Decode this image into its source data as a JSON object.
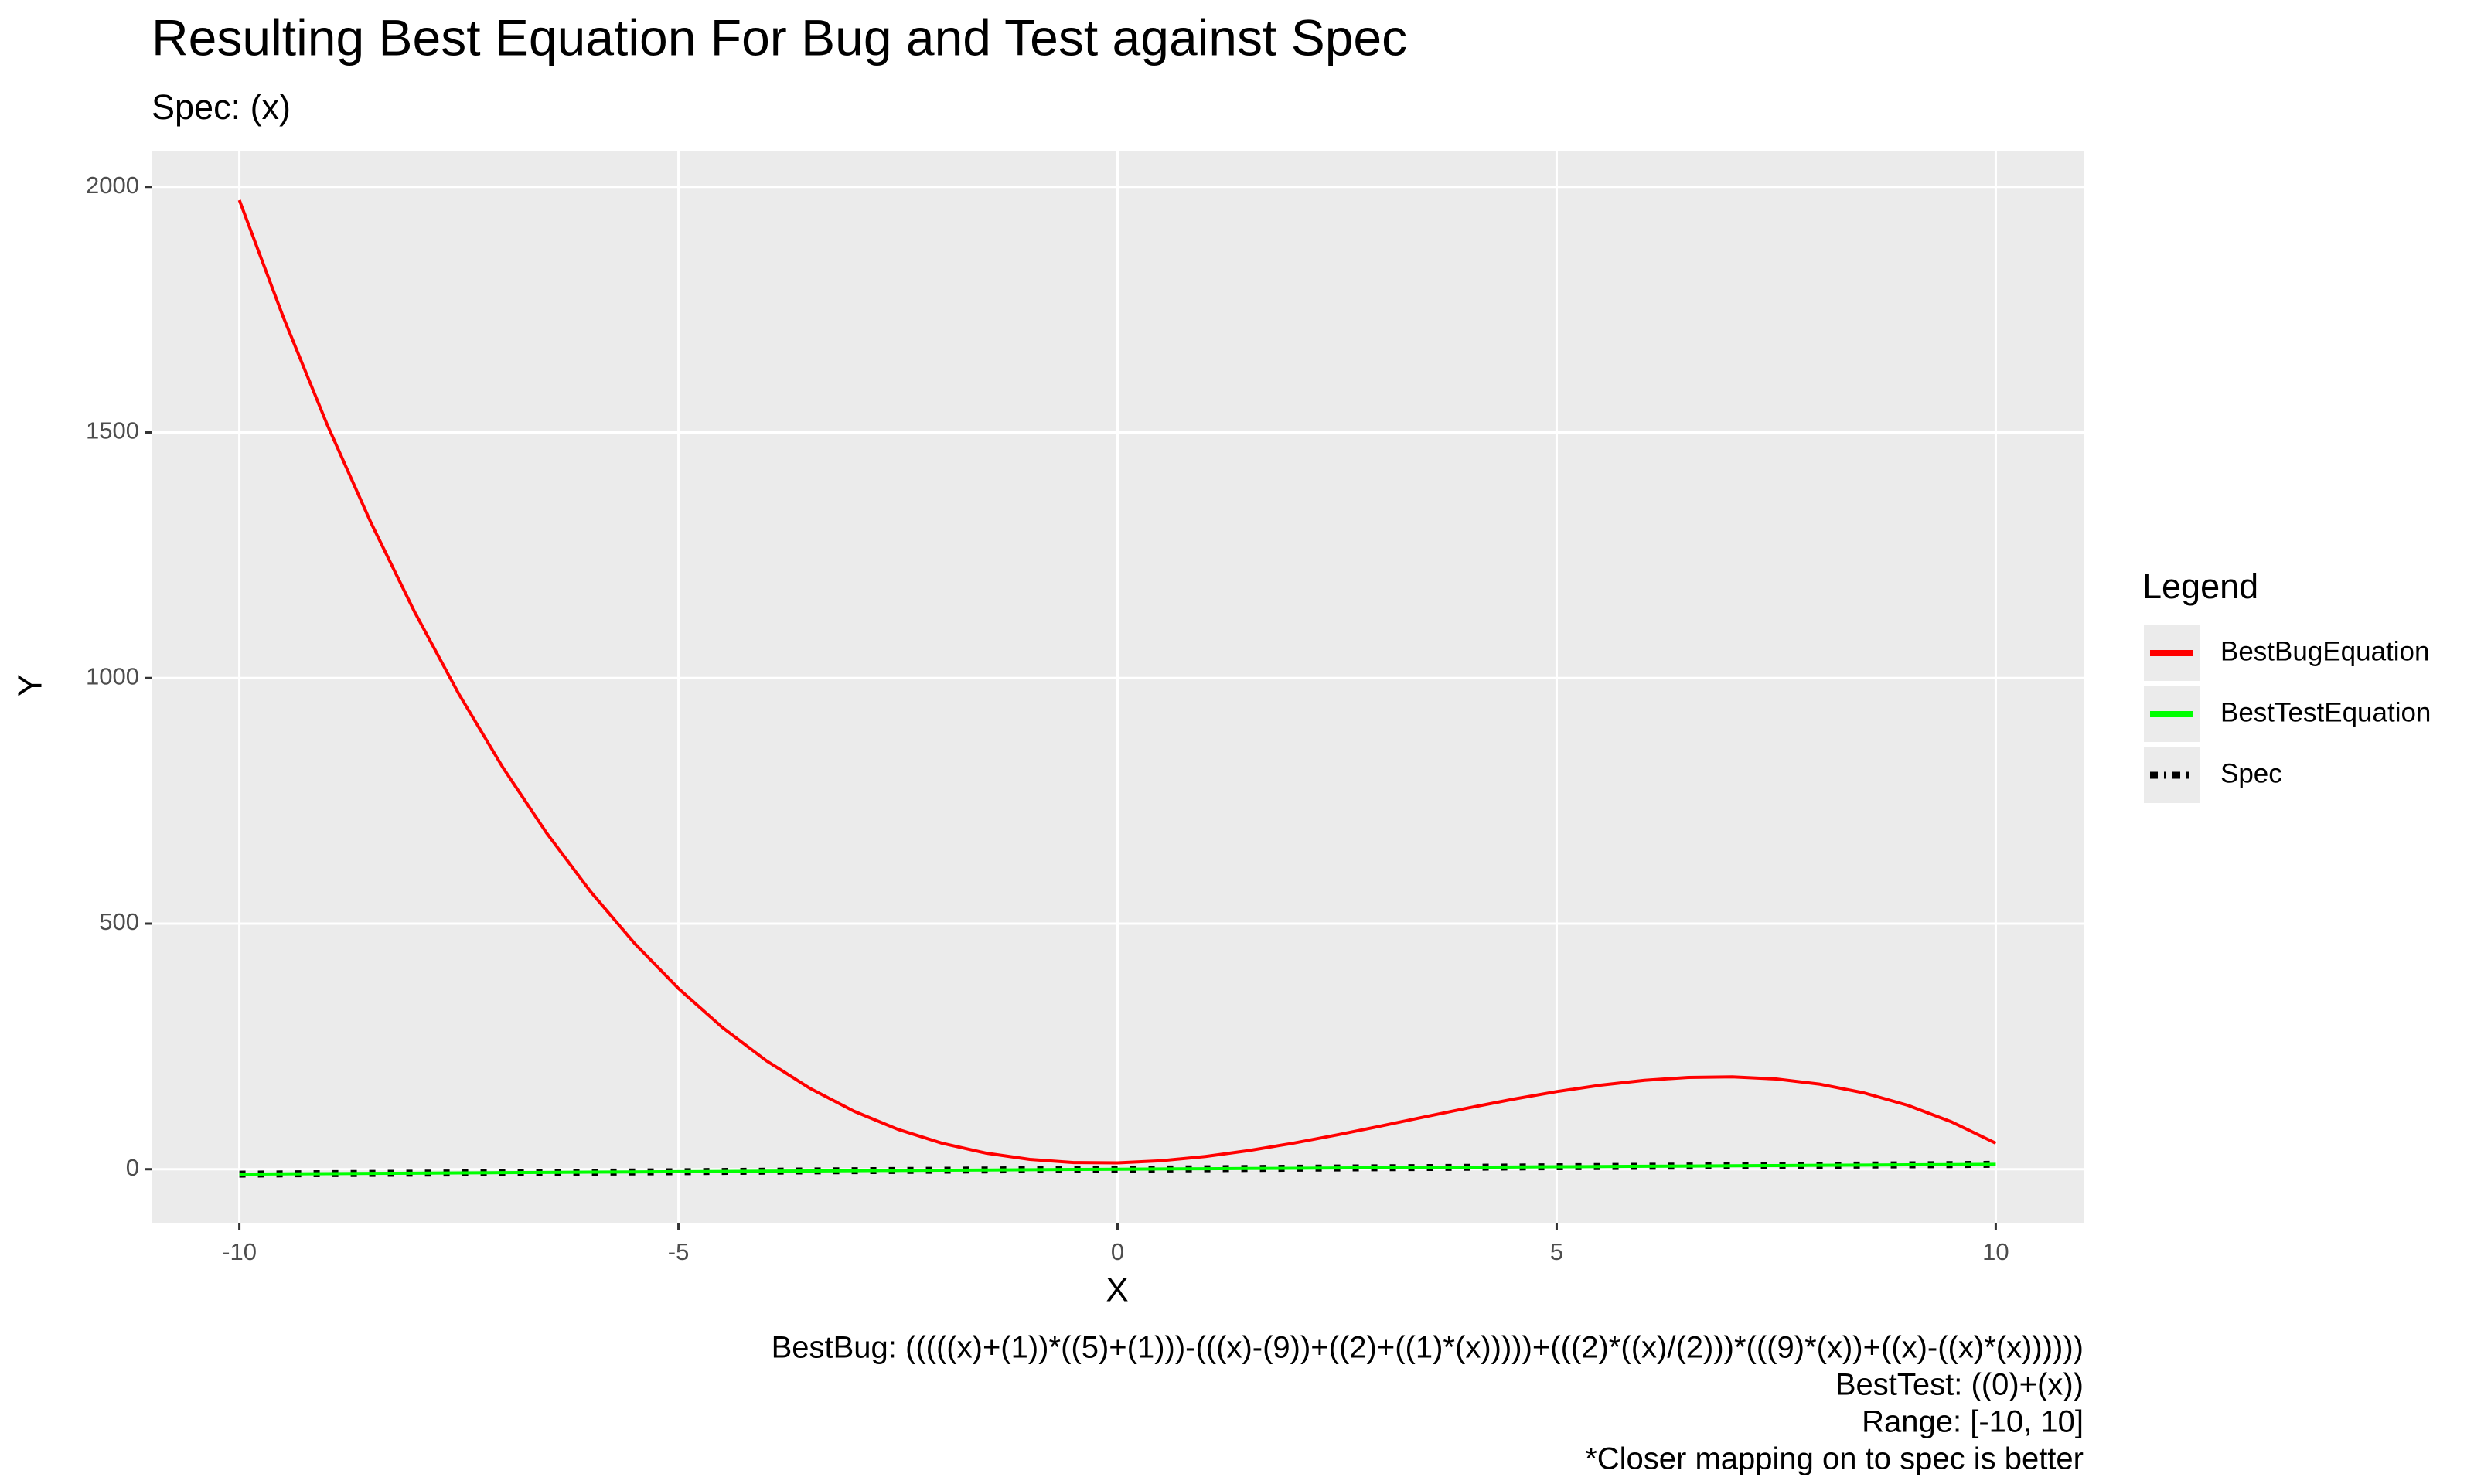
{
  "chart_data": {
    "type": "line",
    "title": "Resulting Best Equation For Bug and Test against Spec",
    "subtitle": "Spec: (x)",
    "x_label": "X",
    "y_label": "Y",
    "legend_title": "Legend",
    "legend_position": "right",
    "grid": true,
    "caption": [
      "BestBug: (((((x)+(1))*((5)+(1)))-(((x)-(9))+((2)+((1)*(x)))))+(((2)*((x)/(2)))*(((9)*(x))+((x)-((x)*(x))))))",
      "BestTest: ((0)+(x))",
      "Range: [-10, 10]",
      "*Closer mapping on to spec is better"
    ],
    "x": [
      -10,
      -9.5,
      -9,
      -8.5,
      -8,
      -7.5,
      -7,
      -6.5,
      -6,
      -5.5,
      -5,
      -4.5,
      -4,
      -3.5,
      -3,
      -2.5,
      -2,
      -1.5,
      -1,
      -0.5,
      0,
      0.5,
      1,
      1.5,
      2,
      2.5,
      3,
      3.5,
      4,
      4.5,
      5,
      5.5,
      6,
      6.5,
      7,
      7.5,
      8,
      8.5,
      9,
      9.5,
      10
    ],
    "series": [
      {
        "name": "BestBugEquation",
        "color": "#ff0000",
        "style": "solid",
        "values": [
          1973,
          1734.875,
          1516,
          1315.625,
          1133,
          967.375,
          818,
          684.125,
          565,
          459.875,
          368,
          288.625,
          221,
          164.375,
          118,
          81.125,
          53,
          32.875,
          20,
          13.625,
          13,
          17.375,
          26,
          38.125,
          53,
          69.875,
          88,
          106.625,
          125,
          142.375,
          158,
          171.125,
          181,
          186.875,
          188,
          183.625,
          173,
          155.375,
          130,
          96.125,
          53
        ]
      },
      {
        "name": "BestTestEquation",
        "color": "#00ff00",
        "style": "solid",
        "values": [
          -10,
          -9.5,
          -9,
          -8.5,
          -8,
          -7.5,
          -7,
          -6.5,
          -6,
          -5.5,
          -5,
          -4.5,
          -4,
          -3.5,
          -3,
          -2.5,
          -2,
          -1.5,
          -1,
          -0.5,
          0,
          0.5,
          1,
          1.5,
          2,
          2.5,
          3,
          3.5,
          4,
          4.5,
          5,
          5.5,
          6,
          6.5,
          7,
          7.5,
          8,
          8.5,
          9,
          9.5,
          10
        ]
      },
      {
        "name": "Spec",
        "color": "#000000",
        "style": "dotted",
        "values": [
          -10,
          -9.5,
          -9,
          -8.5,
          -8,
          -7.5,
          -7,
          -6.5,
          -6,
          -5.5,
          -5,
          -4.5,
          -4,
          -3.5,
          -3,
          -2.5,
          -2,
          -1.5,
          -1,
          -0.5,
          0,
          0.5,
          1,
          1.5,
          2,
          2.5,
          3,
          3.5,
          4,
          4.5,
          5,
          5.5,
          6,
          6.5,
          7,
          7.5,
          8,
          8.5,
          9,
          9.5,
          10
        ]
      }
    ],
    "xlim": [
      -11,
      11
    ],
    "ylim": [
      -109,
      2072
    ],
    "xticks": [
      -10,
      -5,
      0,
      5,
      10
    ],
    "yticks": [
      0,
      500,
      1000,
      1500,
      2000
    ]
  }
}
